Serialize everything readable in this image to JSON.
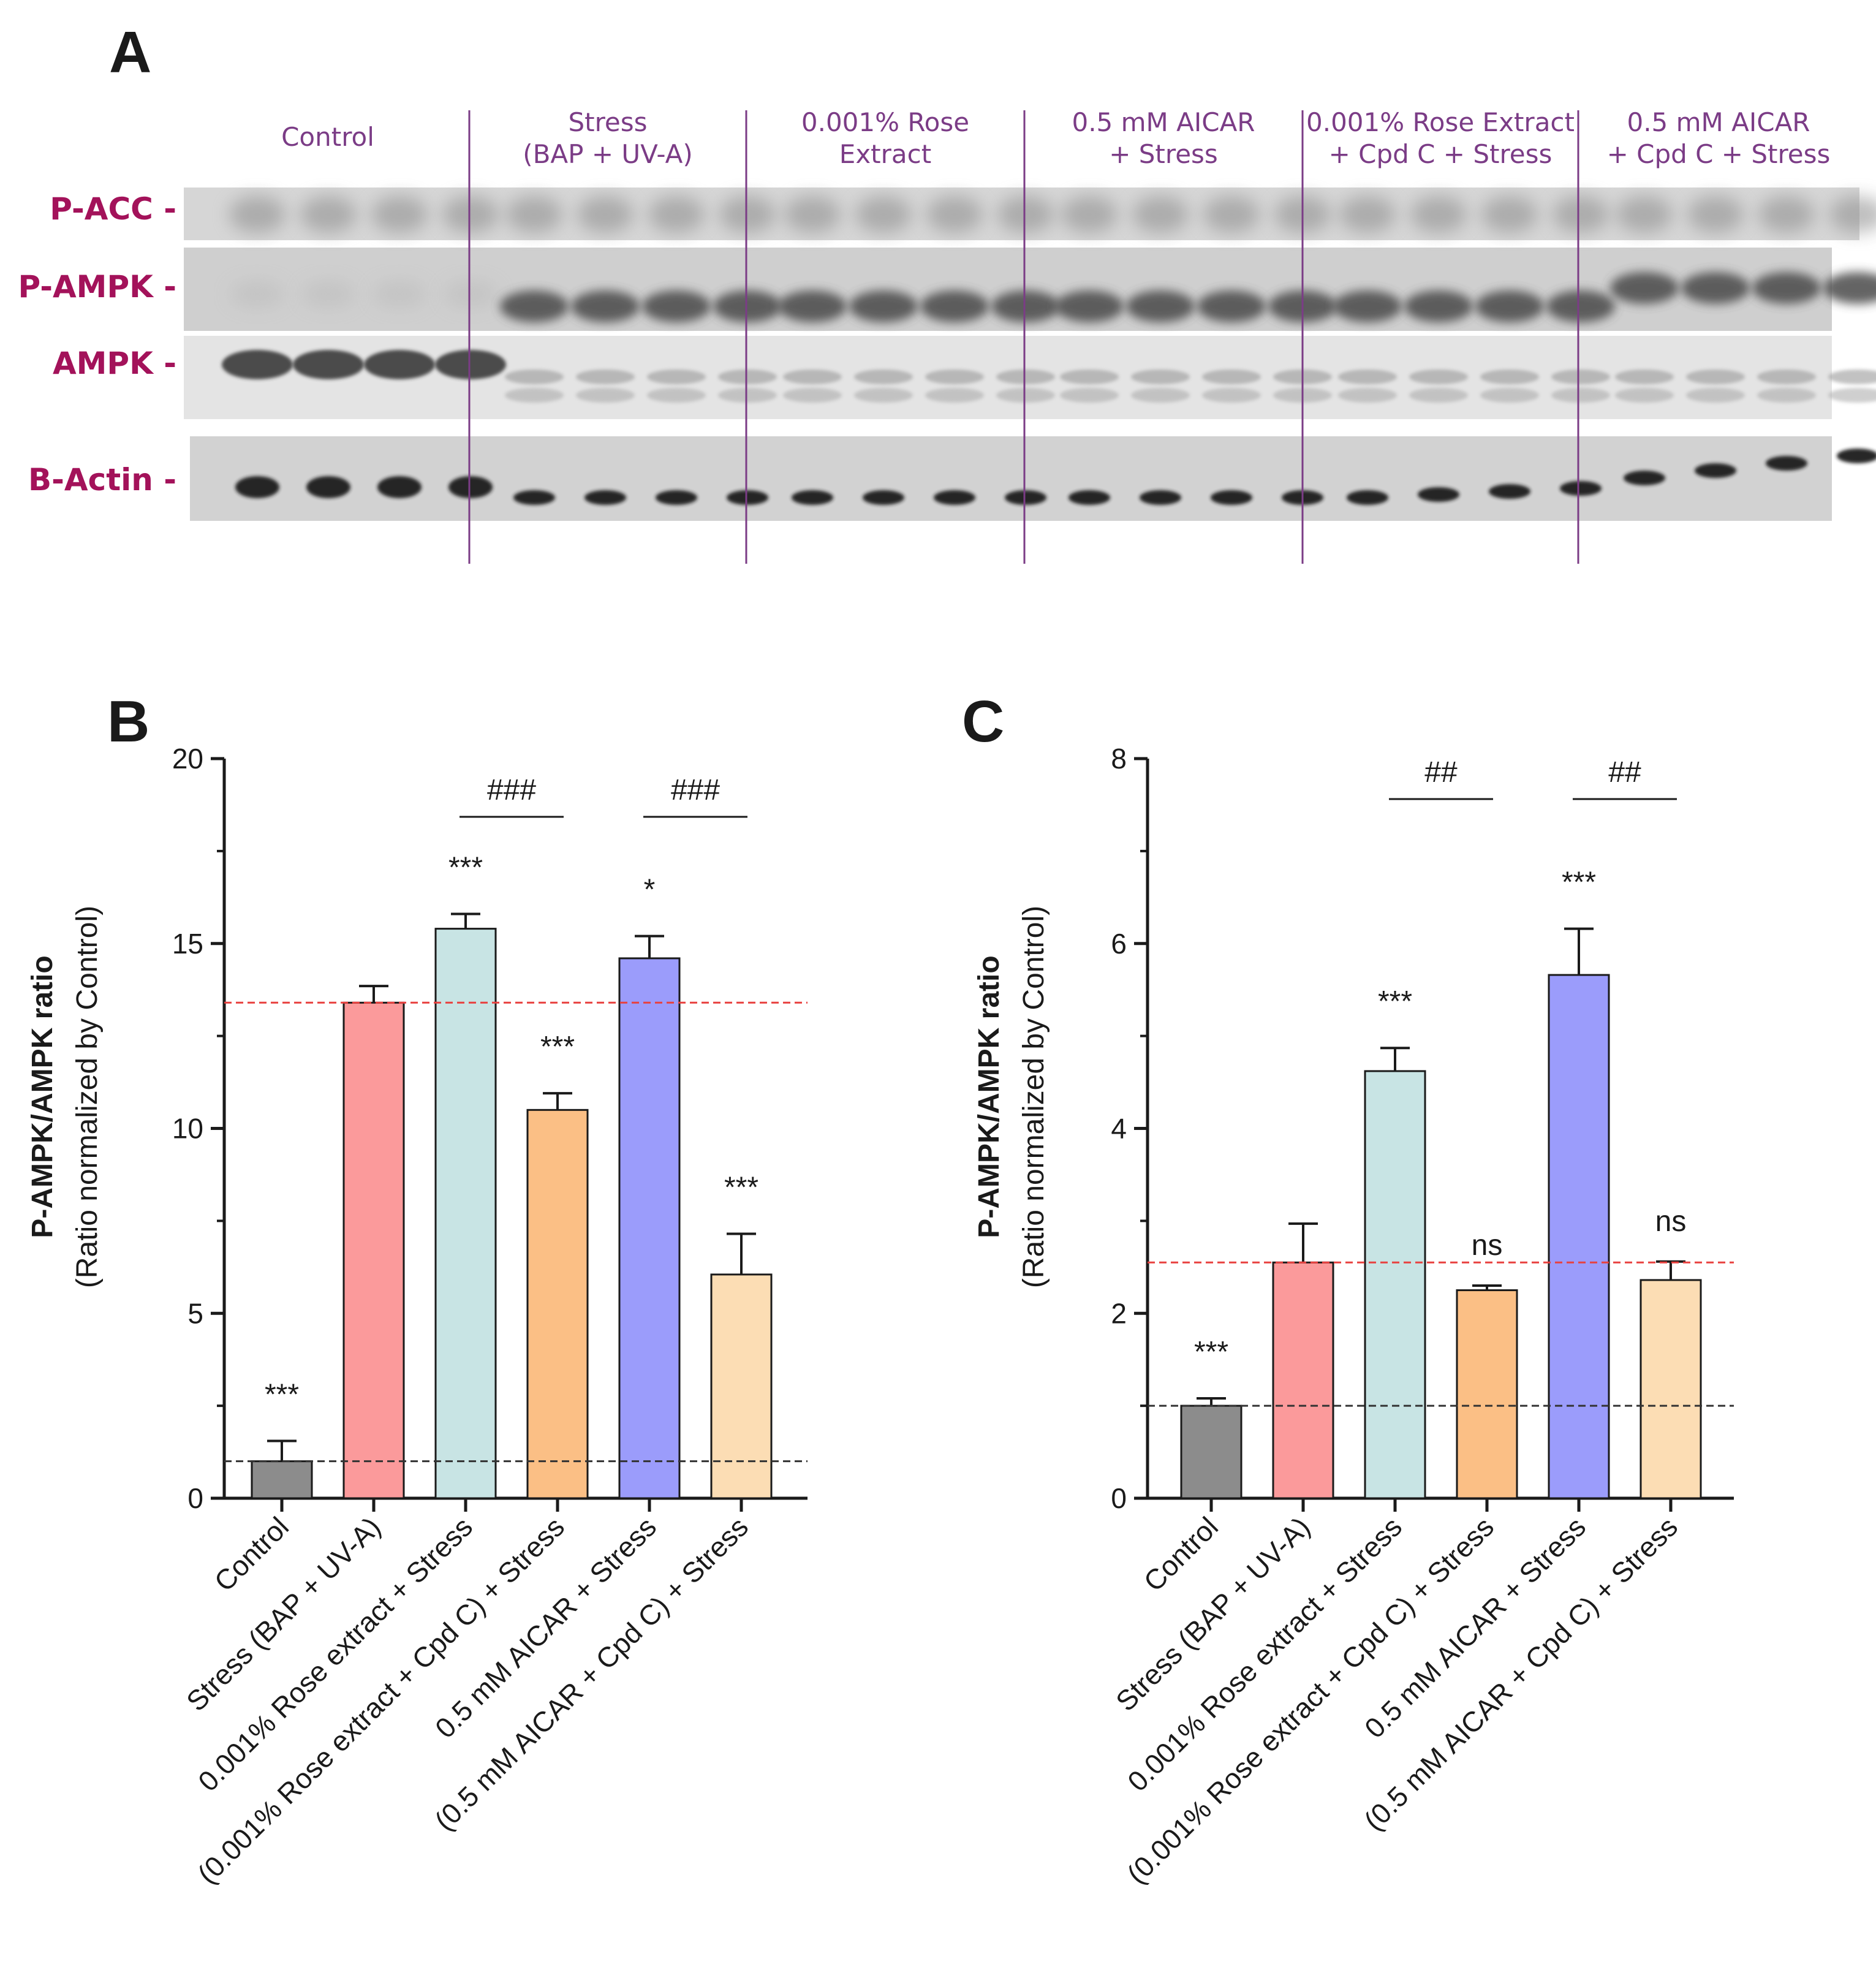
{
  "panel_a": {
    "letter": "A",
    "group_labels": [
      [
        "Control"
      ],
      [
        "Stress",
        "(BAP + UV-A)"
      ],
      [
        "0.001% Rose",
        "Extract"
      ],
      [
        "0.5 mM AICAR",
        "+ Stress"
      ],
      [
        "0.001% Rose Extract",
        "+ Cpd C + Stress"
      ],
      [
        "0.5 mM AICAR",
        "+ Cpd C + Stress"
      ]
    ],
    "blot_labels": [
      "P-ACC -",
      "P-AMPK -",
      "AMPK -",
      "B-Actin -"
    ]
  },
  "colors": {
    "control": "#8c8c8c",
    "stress": "#fb9a9b",
    "rose": "#c8e4e4",
    "rose_cpd": "#fbbf85",
    "aicar": "#9b9cfb",
    "aicar_cpd": "#fcddb4",
    "stress_ref_line": "#e8413f",
    "control_ref_line": "#333333",
    "blot_label": "#a3125a",
    "group_label": "#7b3c86"
  },
  "chart_data": [
    {
      "panel": "B",
      "type": "bar",
      "ylabel": "P-AMPK/AMPK ratio",
      "ylabel_sub": "(Ratio normalized by Control)",
      "ylim": [
        0,
        20
      ],
      "yticks": [
        "0",
        "5",
        "10",
        "15",
        "20"
      ],
      "categories": [
        "Control",
        "Stress (BAP + UV-A)",
        "0.001% Rose extract + Stress",
        "(0.001% Rose extract + Cpd C) + Stress",
        "0.5 mM AICAR + Stress",
        "(0.5 mM AICAR + Cpd C) + Stress"
      ],
      "values": [
        1.0,
        13.4,
        15.4,
        10.5,
        14.6,
        6.05
      ],
      "errors": [
        0.55,
        0.45,
        0.4,
        0.45,
        0.6,
        1.1
      ],
      "significance": [
        "***",
        "",
        "***",
        "***",
        "*",
        "***"
      ],
      "comparisons": [
        {
          "from": 2,
          "to": 3,
          "label": "###"
        },
        {
          "from": 4,
          "to": 5,
          "label": "###"
        }
      ],
      "reference_lines": [
        13.4,
        1.0
      ]
    },
    {
      "panel": "C",
      "type": "bar",
      "ylabel": "P-AMPK/AMPK ratio",
      "ylabel_sub": "(Ratio normalized by Control)",
      "ylim": [
        0,
        8
      ],
      "yticks": [
        "0",
        "2",
        "4",
        "6",
        "8"
      ],
      "categories": [
        "Control",
        "Stress (BAP + UV-A)",
        "0.001% Rose extract + Stress",
        "(0.001% Rose extract + Cpd C) + Stress",
        "0.5 mM AICAR + Stress",
        "(0.5 mM AICAR + Cpd C) + Stress"
      ],
      "values": [
        1.0,
        2.55,
        4.62,
        2.25,
        5.66,
        2.36
      ],
      "errors": [
        0.08,
        0.42,
        0.25,
        0.05,
        0.5,
        0.2
      ],
      "significance": [
        "***",
        "",
        "***",
        "ns",
        "***",
        "ns"
      ],
      "comparisons": [
        {
          "from": 2,
          "to": 3,
          "label": "##"
        },
        {
          "from": 4,
          "to": 5,
          "label": "##"
        }
      ],
      "reference_lines": [
        2.55,
        1.0
      ]
    }
  ]
}
